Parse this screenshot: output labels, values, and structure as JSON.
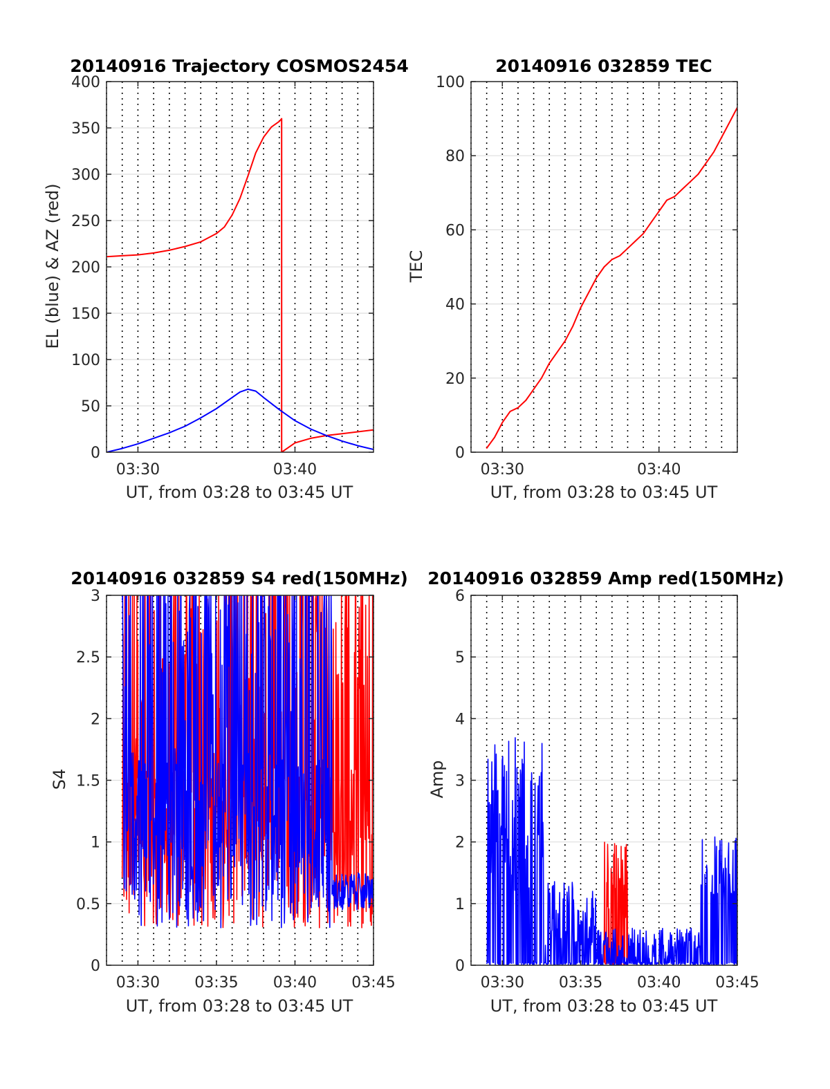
{
  "chart_data": [
    {
      "id": "p1",
      "type": "line",
      "title": "20140916 Trajectory COSMOS2454",
      "xlabel": "UT, from 03:28 to 03:45 UT",
      "ylabel": "EL (blue) & AZ (red)",
      "xlim": [
        "03:28",
        "03:45"
      ],
      "ylim": [
        0,
        400
      ],
      "xticks": [
        "03:30",
        "03:40"
      ],
      "yticks": [
        0,
        50,
        100,
        150,
        200,
        250,
        300,
        350,
        400
      ],
      "grid": "horizontal solid, vertical dotted every 1 min",
      "series": [
        {
          "color": "#ff0000",
          "x": [
            "03:28",
            "03:29",
            "03:30",
            "03:31",
            "03:32",
            "03:33",
            "03:34",
            "03:35",
            "03:35:30",
            "03:36",
            "03:36:30",
            "03:37",
            "03:37:30",
            "03:38",
            "03:38:30",
            "03:39",
            "03:39:09",
            "03:39:09",
            "03:40",
            "03:41",
            "03:42",
            "03:43",
            "03:44",
            "03:45"
          ],
          "y": [
            211,
            212,
            213,
            215,
            218,
            222,
            227,
            236,
            243,
            256,
            274,
            298,
            323,
            340,
            351,
            357,
            360,
            0,
            10,
            15,
            18,
            20,
            22,
            24
          ]
        },
        {
          "color": "#0000ff",
          "x": [
            "03:28",
            "03:29",
            "03:30",
            "03:31",
            "03:32",
            "03:33",
            "03:34",
            "03:35",
            "03:36",
            "03:36:30",
            "03:37",
            "03:37:30",
            "03:38",
            "03:39",
            "03:40",
            "03:41",
            "03:42",
            "03:43",
            "03:44",
            "03:45"
          ],
          "y": [
            0,
            4,
            9,
            15,
            21,
            28,
            37,
            47,
            59,
            65,
            68,
            66,
            59,
            46,
            34,
            25,
            18,
            12,
            7,
            3
          ]
        }
      ]
    },
    {
      "id": "p2",
      "type": "line",
      "title": "20140916 032859 TEC",
      "xlabel": "UT, from 03:28 to 03:45 UT",
      "ylabel": "TEC",
      "xlim": [
        "03:28",
        "03:45"
      ],
      "ylim": [
        0,
        100
      ],
      "xticks": [
        "03:30",
        "03:40"
      ],
      "yticks": [
        0,
        20,
        40,
        60,
        80,
        100
      ],
      "grid": "horizontal solid, vertical dotted every 1 min",
      "series": [
        {
          "color": "#ff0000",
          "x": [
            "03:28:59",
            "03:29:30",
            "03:30",
            "03:30:30",
            "03:31",
            "03:31:30",
            "03:32",
            "03:32:30",
            "03:33",
            "03:33:30",
            "03:34",
            "03:34:30",
            "03:35",
            "03:35:30",
            "03:36",
            "03:36:30",
            "03:37",
            "03:37:30",
            "03:38",
            "03:38:30",
            "03:39",
            "03:39:30",
            "03:40",
            "03:40:30",
            "03:41",
            "03:41:30",
            "03:42",
            "03:42:30",
            "03:43",
            "03:43:30",
            "03:44",
            "03:44:30",
            "03:45"
          ],
          "y": [
            1,
            4,
            8,
            11,
            12,
            14,
            17,
            20,
            24,
            27,
            30,
            34,
            39,
            43,
            47,
            50,
            52,
            53,
            55,
            57,
            59,
            62,
            65,
            68,
            69,
            71,
            73,
            75,
            78,
            81,
            85,
            89,
            93
          ]
        }
      ]
    },
    {
      "id": "p3",
      "type": "line",
      "title": "20140916 032859 S4 red(150MHz)",
      "xlabel": "UT, from 03:28 to 03:45 UT",
      "ylabel": "S4",
      "xlim": [
        "03:28",
        "03:45"
      ],
      "ylim": [
        0,
        3
      ],
      "xticks": [
        "03:30",
        "03:35",
        "03:40",
        "03:45"
      ],
      "yticks": [
        0,
        0.5,
        1,
        1.5,
        2,
        2.5,
        3
      ],
      "grid": "horizontal solid, vertical dotted every 1 min",
      "series": [
        {
          "color": "#ff0000",
          "x": [
            "03:29:00",
            "03:45:00"
          ],
          "y_range": [
            0,
            3
          ]
        },
        {
          "color": "#0000ff",
          "x": [
            "03:29:00",
            "03:45:00"
          ],
          "y_range": [
            0,
            3
          ]
        }
      ]
    },
    {
      "id": "p4",
      "type": "line",
      "title": "20140916 032859 Amp red(150MHz)",
      "xlabel": "UT, from 03:28 to 03:45 UT",
      "ylabel": "Amp",
      "xlim": [
        "03:28",
        "03:45"
      ],
      "ylim": [
        0,
        6
      ],
      "xticks": [
        "03:30",
        "03:35",
        "03:40",
        "03:45"
      ],
      "yticks": [
        0,
        1,
        2,
        3,
        4,
        5,
        6
      ],
      "grid": "horizontal solid, vertical dotted every 1 min",
      "series": [
        {
          "color": "#ff0000",
          "x": [
            "03:36:30",
            "03:38:00"
          ],
          "y_range": [
            0,
            2.05
          ]
        },
        {
          "color": "#0000ff",
          "x": [
            "03:29:00",
            "03:45:00"
          ],
          "y_range": [
            0,
            4.05
          ]
        }
      ]
    }
  ]
}
